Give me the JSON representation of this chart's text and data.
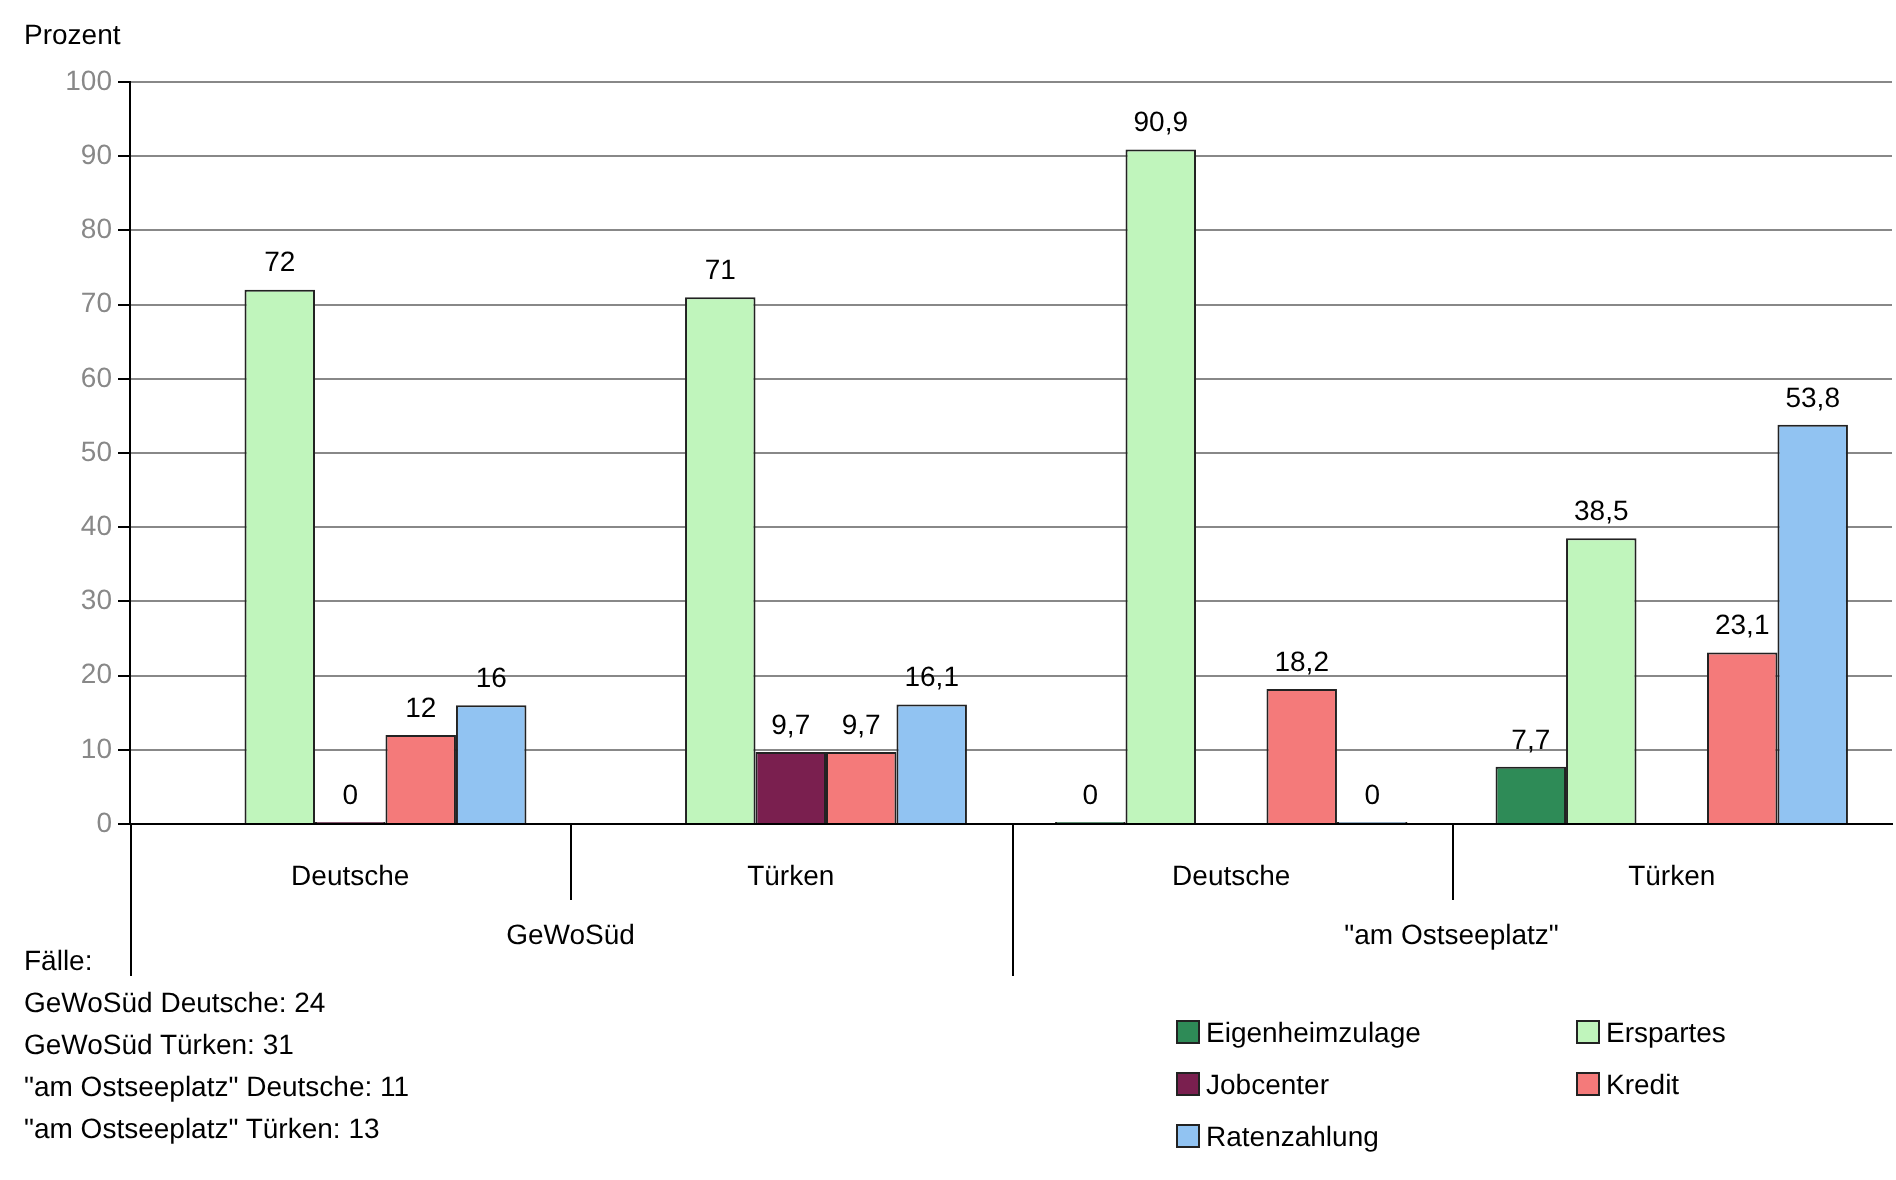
{
  "chart_data": {
    "type": "bar",
    "ylabel": "Prozent",
    "categories": [
      "Deutsche",
      "Türken",
      "Deutsche",
      "Türken"
    ],
    "series": [
      {
        "name": "Eigenheimzulage",
        "color": "#2e8b57",
        "values": [
          null,
          null,
          0,
          7.7
        ],
        "value_labels": [
          null,
          null,
          "0",
          "7,7"
        ]
      },
      {
        "name": "Erspartes",
        "color": "#c0f5bc",
        "values": [
          72,
          71,
          90.9,
          38.5
        ],
        "value_labels": [
          "72",
          "71",
          "90,9",
          "38,5"
        ]
      },
      {
        "name": "Jobcenter",
        "color": "#7a1f4f",
        "values": [
          0,
          9.7,
          null,
          null
        ],
        "value_labels": [
          "0",
          "9,7",
          null,
          null
        ]
      },
      {
        "name": "Kredit",
        "color": "#f47a7a",
        "values": [
          12,
          9.7,
          18.2,
          23.1
        ],
        "value_labels": [
          "12",
          "9,7",
          "18,2",
          "23,1"
        ]
      },
      {
        "name": "Ratenzahlung",
        "color": "#91c3f2",
        "values": [
          16,
          16.1,
          0,
          53.8
        ],
        "value_labels": [
          "16",
          "16,1",
          "0",
          "53,8"
        ]
      }
    ],
    "ylim": [
      0,
      100
    ],
    "yticks": [
      0,
      10,
      20,
      30,
      40,
      50,
      60,
      70,
      80,
      90,
      100
    ],
    "grid": "y",
    "legend": "bottom right",
    "annotations": [
      "GeWoSüd",
      "\"am Ostseeplatz\"",
      "Fälle:",
      "GeWoSüd Deutsche: 24",
      "GeWoSüd Türken: 31",
      "\"am Ostseeplatz\" Deutsche: 11",
      "\"am Ostseeplatz\" Türken: 13"
    ]
  }
}
